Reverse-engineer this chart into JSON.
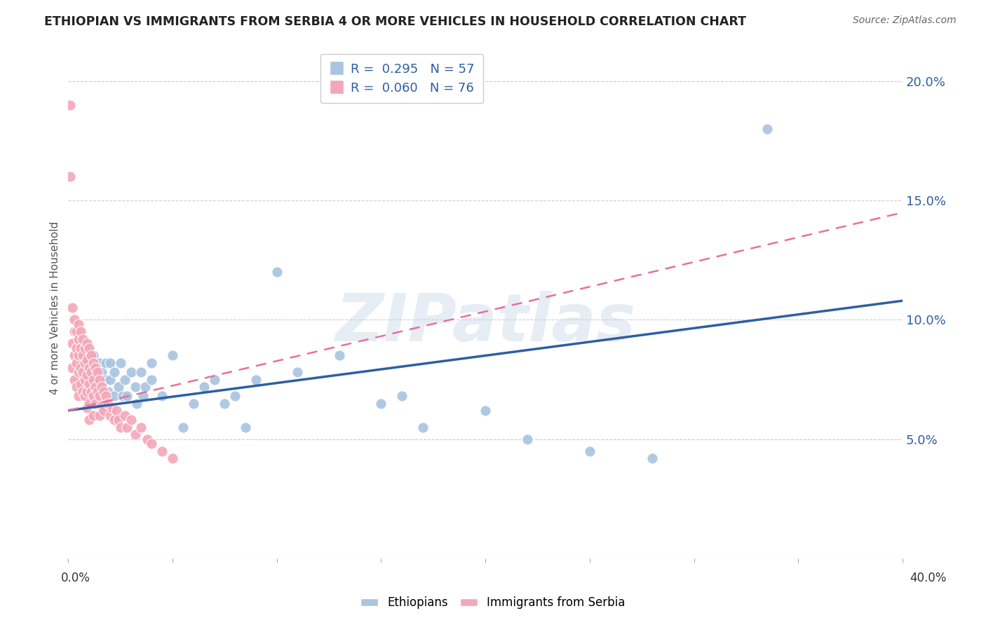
{
  "title": "ETHIOPIAN VS IMMIGRANTS FROM SERBIA 4 OR MORE VEHICLES IN HOUSEHOLD CORRELATION CHART",
  "source": "Source: ZipAtlas.com",
  "ylabel": "4 or more Vehicles in Household",
  "ylabel_right_ticks": [
    "5.0%",
    "10.0%",
    "15.0%",
    "20.0%"
  ],
  "ylabel_right_values": [
    0.05,
    0.1,
    0.15,
    0.2
  ],
  "watermark": "ZIPatlas",
  "series": [
    {
      "name": "Ethiopians",
      "R": 0.295,
      "N": 57,
      "color": "#a8c4e0",
      "line_color": "#2e5fa3",
      "line_style": "solid",
      "line_x0": 0.0,
      "line_y0": 0.062,
      "line_x1": 0.4,
      "line_y1": 0.108,
      "x": [
        0.005,
        0.006,
        0.007,
        0.008,
        0.009,
        0.01,
        0.01,
        0.012,
        0.012,
        0.013,
        0.014,
        0.015,
        0.015,
        0.016,
        0.016,
        0.017,
        0.018,
        0.018,
        0.019,
        0.02,
        0.02,
        0.022,
        0.022,
        0.024,
        0.025,
        0.026,
        0.027,
        0.028,
        0.03,
        0.032,
        0.033,
        0.035,
        0.036,
        0.037,
        0.04,
        0.04,
        0.045,
        0.05,
        0.055,
        0.06,
        0.065,
        0.07,
        0.075,
        0.08,
        0.085,
        0.09,
        0.1,
        0.11,
        0.13,
        0.15,
        0.16,
        0.17,
        0.2,
        0.22,
        0.25,
        0.28,
        0.335
      ],
      "y": [
        0.075,
        0.08,
        0.07,
        0.075,
        0.08,
        0.072,
        0.068,
        0.075,
        0.085,
        0.065,
        0.078,
        0.072,
        0.082,
        0.068,
        0.078,
        0.065,
        0.075,
        0.082,
        0.07,
        0.075,
        0.082,
        0.068,
        0.078,
        0.072,
        0.082,
        0.068,
        0.075,
        0.068,
        0.078,
        0.072,
        0.065,
        0.078,
        0.068,
        0.072,
        0.075,
        0.082,
        0.068,
        0.085,
        0.055,
        0.065,
        0.072,
        0.075,
        0.065,
        0.068,
        0.055,
        0.075,
        0.12,
        0.078,
        0.085,
        0.065,
        0.068,
        0.055,
        0.062,
        0.05,
        0.045,
        0.042,
        0.18
      ]
    },
    {
      "name": "Immigrants from Serbia",
      "R": 0.06,
      "N": 76,
      "color": "#f4a7b9",
      "line_color": "#e8709a",
      "line_style": "dashed",
      "line_x0": 0.0,
      "line_y0": 0.062,
      "line_x1": 0.4,
      "line_y1": 0.145,
      "x": [
        0.001,
        0.001,
        0.002,
        0.002,
        0.002,
        0.003,
        0.003,
        0.003,
        0.003,
        0.004,
        0.004,
        0.004,
        0.004,
        0.005,
        0.005,
        0.005,
        0.005,
        0.005,
        0.006,
        0.006,
        0.006,
        0.006,
        0.007,
        0.007,
        0.007,
        0.007,
        0.008,
        0.008,
        0.008,
        0.008,
        0.009,
        0.009,
        0.009,
        0.009,
        0.009,
        0.01,
        0.01,
        0.01,
        0.01,
        0.01,
        0.011,
        0.011,
        0.011,
        0.012,
        0.012,
        0.012,
        0.012,
        0.013,
        0.013,
        0.013,
        0.014,
        0.014,
        0.015,
        0.015,
        0.015,
        0.016,
        0.016,
        0.017,
        0.017,
        0.018,
        0.019,
        0.02,
        0.021,
        0.022,
        0.023,
        0.024,
        0.025,
        0.027,
        0.028,
        0.03,
        0.032,
        0.035,
        0.038,
        0.04,
        0.045,
        0.05
      ],
      "y": [
        0.19,
        0.16,
        0.105,
        0.09,
        0.08,
        0.1,
        0.095,
        0.085,
        0.075,
        0.095,
        0.088,
        0.082,
        0.072,
        0.098,
        0.092,
        0.085,
        0.078,
        0.068,
        0.095,
        0.088,
        0.08,
        0.073,
        0.092,
        0.085,
        0.078,
        0.07,
        0.088,
        0.082,
        0.075,
        0.068,
        0.09,
        0.083,
        0.077,
        0.07,
        0.063,
        0.088,
        0.08,
        0.073,
        0.065,
        0.058,
        0.085,
        0.078,
        0.07,
        0.082,
        0.075,
        0.068,
        0.06,
        0.08,
        0.072,
        0.065,
        0.078,
        0.07,
        0.075,
        0.068,
        0.06,
        0.072,
        0.064,
        0.07,
        0.062,
        0.068,
        0.065,
        0.06,
        0.063,
        0.058,
        0.062,
        0.058,
        0.055,
        0.06,
        0.055,
        0.058,
        0.052,
        0.055,
        0.05,
        0.048,
        0.045,
        0.042
      ]
    }
  ],
  "xlim": [
    0.0,
    0.4
  ],
  "ylim": [
    0.0,
    0.21
  ],
  "background_color": "#ffffff",
  "grid_color": "#cccccc",
  "title_color": "#222222",
  "source_color": "#666666",
  "legend_text_color": "#2e5fa3",
  "watermark_color": "#c8d8e8",
  "watermark_alpha": 0.45
}
